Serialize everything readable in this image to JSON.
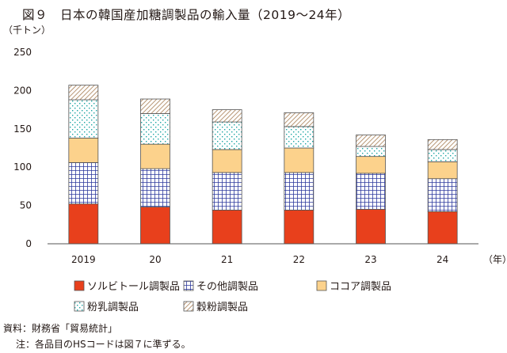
{
  "title": "図９　日本の韓国産加糖調製品の輸入量（2019～24年）",
  "source": "資料：財務省「貿易統計」",
  "note": "注：各品目のHSコードは図７に準ずる。",
  "chart_data": {
    "type": "bar",
    "stacked": true,
    "title": "図９　日本の韓国産加糖調製品の輸入量（2019～24年）",
    "ylabel": "（千トン）",
    "xlabel": "（年）",
    "ylim": [
      0,
      250
    ],
    "yticks": [
      0,
      50,
      100,
      150,
      200,
      250
    ],
    "grid": false,
    "legend_position": "bottom",
    "categories": [
      "2019",
      "20",
      "21",
      "22",
      "23",
      "24"
    ],
    "series": [
      {
        "name": "ソルビトール調製品",
        "color": "#e8401c",
        "pattern": "solid",
        "values": [
          52,
          48,
          44,
          44,
          45,
          42
        ]
      },
      {
        "name": "その他調製品",
        "color": "#2e3a9e",
        "pattern": "grid",
        "values": [
          54,
          50,
          49,
          49,
          47,
          43
        ]
      },
      {
        "name": "ココア調製品",
        "color": "#fcd28c",
        "pattern": "solid",
        "values": [
          32,
          32,
          30,
          32,
          22,
          22
        ]
      },
      {
        "name": "粉乳調製品",
        "color": "#1aa5a3",
        "pattern": "dots",
        "values": [
          50,
          40,
          36,
          28,
          13,
          16
        ]
      },
      {
        "name": "穀粉調製品",
        "color": "#a67c52",
        "pattern": "hatch",
        "values": [
          19,
          19,
          16,
          18,
          15,
          13
        ]
      }
    ]
  }
}
